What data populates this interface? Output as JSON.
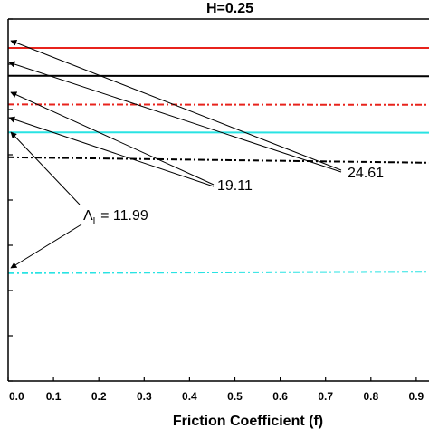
{
  "chart_data": {
    "type": "line",
    "title": "H=0.25",
    "xlabel": "Friction Coefficient (f)",
    "ylabel": "",
    "xlim": [
      0,
      0.95
    ],
    "ylim": [
      0,
      1
    ],
    "x_ticks": [
      "0.0",
      "0.1",
      "0.2",
      "0.3",
      "0.4",
      "0.5",
      "0.6",
      "0.7",
      "0.8",
      "0.9"
    ],
    "grid": false,
    "series": [
      {
        "color": "#e8231c",
        "style": "solid",
        "x": [
          0,
          0.95
        ],
        "y": [
          0.92,
          0.92
        ]
      },
      {
        "color": "#000000",
        "style": "solid",
        "x": [
          0,
          0.95
        ],
        "y": [
          0.843,
          0.842
        ]
      },
      {
        "color": "#e8231c",
        "style": "dashdot",
        "x": [
          0,
          0.95
        ],
        "y": [
          0.764,
          0.763
        ]
      },
      {
        "color": "#29e3e3",
        "style": "solid",
        "x": [
          0,
          0.95
        ],
        "y": [
          0.687,
          0.686
        ]
      },
      {
        "color": "#000000",
        "style": "dashdot",
        "x": [
          0,
          0.95
        ],
        "y": [
          0.618,
          0.603
        ]
      },
      {
        "color": "#29e3e3",
        "style": "dashdot",
        "x": [
          0,
          0.95
        ],
        "y": [
          0.298,
          0.302
        ]
      }
    ],
    "annotations": [
      {
        "text": "24.61",
        "points_to_series": [
          0,
          1
        ]
      },
      {
        "text": "19.11",
        "points_to_series": [
          2,
          3
        ]
      },
      {
        "label_symbol": "Λ",
        "label_subscript": "l",
        "label_value": "= 11.99",
        "points_to_series": [
          4,
          5
        ]
      }
    ]
  }
}
